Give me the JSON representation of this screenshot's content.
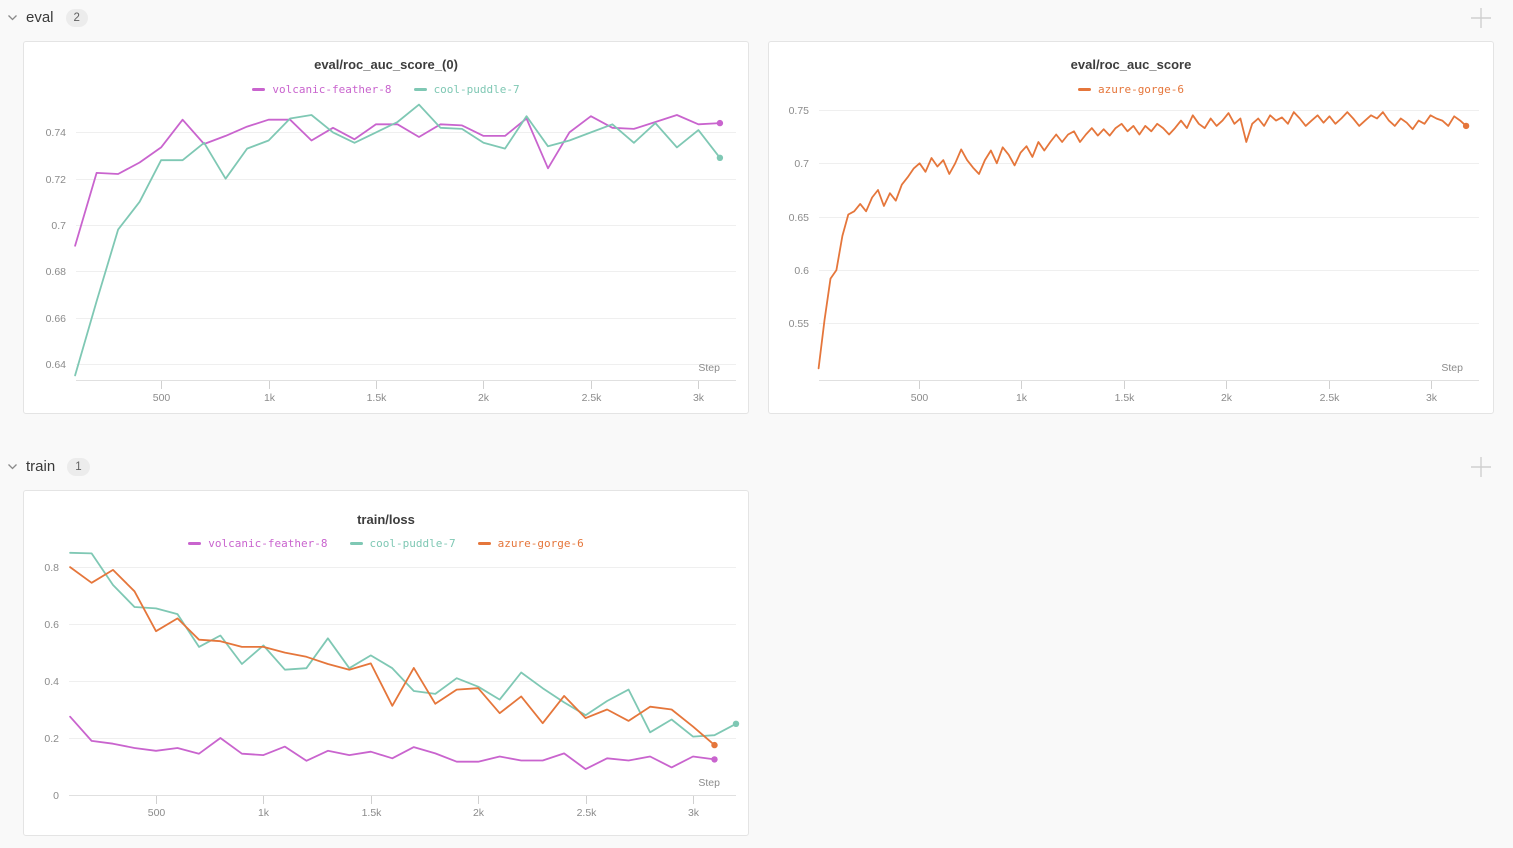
{
  "page": {
    "background": "#f9f9f9"
  },
  "sections": [
    {
      "id": "eval",
      "title": "eval",
      "panel_count": "2",
      "collapse_icon": "chevron-down-icon",
      "add_icon": "plus-icon"
    },
    {
      "id": "train",
      "title": "train",
      "panel_count": "1",
      "collapse_icon": "chevron-down-icon",
      "add_icon": "plus-icon"
    }
  ],
  "colors": {
    "volcanic-feather-8": "#C964CE",
    "cool-puddle-7": "#7FC8B4",
    "azure-gorge-6": "#E5763B",
    "gridline": "#efefef",
    "axis_line": "#e0e0e0",
    "tick_mark": "#d0d0d0",
    "tick_label": "#8b8b8b"
  },
  "chart_data": [
    {
      "type": "line",
      "section": "eval",
      "title": "eval/roc_auc_score_(0)",
      "xlabel": "Step",
      "grid": "horizontal-only",
      "legend_position": "top-center",
      "xlim": [
        104,
        3175
      ],
      "ylim": [
        0.633,
        0.7527
      ],
      "x_ticks": [
        {
          "v": 500,
          "label": "500"
        },
        {
          "v": 1000,
          "label": "1k"
        },
        {
          "v": 1500,
          "label": "1.5k"
        },
        {
          "v": 2000,
          "label": "2k"
        },
        {
          "v": 2500,
          "label": "2.5k"
        },
        {
          "v": 3000,
          "label": "3k"
        }
      ],
      "y_ticks": [
        {
          "v": 0.64,
          "label": "0.64"
        },
        {
          "v": 0.66,
          "label": "0.66"
        },
        {
          "v": 0.68,
          "label": "0.68"
        },
        {
          "v": 0.7,
          "label": "0.7"
        },
        {
          "v": 0.72,
          "label": "0.72"
        },
        {
          "v": 0.74,
          "label": "0.74"
        }
      ],
      "series": [
        {
          "name": "volcanic-feather-8",
          "color": "#C964CE",
          "end_dot": true,
          "x": [
            100,
            200,
            300,
            400,
            500,
            600,
            700,
            800,
            900,
            1000,
            1100,
            1200,
            1300,
            1400,
            1500,
            1600,
            1700,
            1800,
            1900,
            2000,
            2100,
            2200,
            2300,
            2400,
            2500,
            2600,
            2700,
            2800,
            2900,
            3000,
            3100
          ],
          "values": [
            0.691,
            0.7225,
            0.722,
            0.727,
            0.7335,
            0.7455,
            0.735,
            0.7385,
            0.7425,
            0.7455,
            0.7455,
            0.7365,
            0.742,
            0.737,
            0.7435,
            0.7435,
            0.738,
            0.7435,
            0.743,
            0.7385,
            0.7385,
            0.746,
            0.7245,
            0.74,
            0.747,
            0.742,
            0.7415,
            0.7445,
            0.7475,
            0.7435,
            0.744
          ]
        },
        {
          "name": "cool-puddle-7",
          "color": "#7FC8B4",
          "end_dot": true,
          "x": [
            100,
            200,
            300,
            400,
            500,
            600,
            700,
            800,
            900,
            1000,
            1100,
            1200,
            1300,
            1400,
            1500,
            1600,
            1700,
            1800,
            1900,
            2000,
            2100,
            2200,
            2300,
            2400,
            2500,
            2600,
            2700,
            2800,
            2900,
            3000,
            3100
          ],
          "values": [
            0.635,
            0.667,
            0.698,
            0.71,
            0.728,
            0.728,
            0.7355,
            0.72,
            0.733,
            0.7365,
            0.746,
            0.7475,
            0.74,
            0.7355,
            0.74,
            0.7445,
            0.752,
            0.742,
            0.7415,
            0.7355,
            0.733,
            0.747,
            0.734,
            0.7365,
            0.74,
            0.7435,
            0.7355,
            0.744,
            0.7335,
            0.741,
            0.729
          ]
        }
      ]
    },
    {
      "type": "line",
      "section": "eval",
      "title": "eval/roc_auc_score",
      "xlabel": "Step",
      "grid": "horizontal-only",
      "legend_position": "top-center",
      "xlim": [
        12,
        3234
      ],
      "ylim": [
        0.497,
        0.7565
      ],
      "x_ticks": [
        {
          "v": 500,
          "label": "500"
        },
        {
          "v": 1000,
          "label": "1k"
        },
        {
          "v": 1500,
          "label": "1.5k"
        },
        {
          "v": 2000,
          "label": "2k"
        },
        {
          "v": 2500,
          "label": "2.5k"
        },
        {
          "v": 3000,
          "label": "3k"
        }
      ],
      "y_ticks": [
        {
          "v": 0.55,
          "label": "0.55"
        },
        {
          "v": 0.6,
          "label": "0.6"
        },
        {
          "v": 0.65,
          "label": "0.65"
        },
        {
          "v": 0.7,
          "label": "0.7"
        },
        {
          "v": 0.75,
          "label": "0.75"
        }
      ],
      "series": [
        {
          "name": "azure-gorge-6",
          "color": "#E5763B",
          "end_dot": true,
          "x": [
            10,
            39,
            68,
            97,
            126,
            155,
            184,
            213,
            242,
            271,
            300,
            329,
            358,
            387,
            416,
            445,
            474,
            503,
            532,
            561,
            590,
            619,
            648,
            677,
            706,
            735,
            764,
            793,
            822,
            851,
            880,
            909,
            938,
            967,
            996,
            1025,
            1054,
            1083,
            1112,
            1141,
            1170,
            1199,
            1228,
            1257,
            1286,
            1315,
            1344,
            1373,
            1402,
            1431,
            1460,
            1489,
            1518,
            1547,
            1576,
            1605,
            1634,
            1663,
            1692,
            1721,
            1750,
            1779,
            1808,
            1837,
            1866,
            1895,
            1924,
            1953,
            1982,
            2011,
            2040,
            2069,
            2098,
            2127,
            2156,
            2185,
            2214,
            2243,
            2272,
            2301,
            2330,
            2359,
            2388,
            2417,
            2446,
            2475,
            2504,
            2533,
            2562,
            2591,
            2620,
            2649,
            2678,
            2707,
            2736,
            2765,
            2794,
            2823,
            2852,
            2881,
            2910,
            2939,
            2968,
            2997,
            3026,
            3055,
            3084,
            3113,
            3142,
            3171
          ],
          "values": [
            0.508,
            0.553,
            0.592,
            0.6,
            0.632,
            0.652,
            0.655,
            0.662,
            0.655,
            0.668,
            0.675,
            0.66,
            0.672,
            0.665,
            0.68,
            0.687,
            0.695,
            0.7,
            0.692,
            0.705,
            0.697,
            0.703,
            0.69,
            0.7,
            0.713,
            0.703,
            0.696,
            0.69,
            0.703,
            0.712,
            0.7,
            0.715,
            0.708,
            0.698,
            0.71,
            0.716,
            0.706,
            0.72,
            0.712,
            0.72,
            0.727,
            0.72,
            0.727,
            0.73,
            0.72,
            0.727,
            0.733,
            0.726,
            0.732,
            0.726,
            0.733,
            0.737,
            0.73,
            0.735,
            0.727,
            0.735,
            0.73,
            0.737,
            0.733,
            0.727,
            0.733,
            0.74,
            0.733,
            0.745,
            0.737,
            0.733,
            0.742,
            0.735,
            0.74,
            0.747,
            0.737,
            0.742,
            0.72,
            0.737,
            0.742,
            0.735,
            0.745,
            0.74,
            0.743,
            0.737,
            0.748,
            0.742,
            0.735,
            0.74,
            0.745,
            0.738,
            0.744,
            0.737,
            0.742,
            0.748,
            0.742,
            0.735,
            0.74,
            0.745,
            0.742,
            0.748,
            0.74,
            0.735,
            0.742,
            0.738,
            0.732,
            0.74,
            0.737,
            0.745,
            0.742,
            0.74,
            0.735,
            0.744,
            0.74,
            0.735
          ]
        }
      ]
    },
    {
      "type": "line",
      "section": "train",
      "title": "train/loss",
      "xlabel": "Step",
      "grid": "horizontal-only",
      "legend_position": "top-center",
      "xlim": [
        95,
        3200
      ],
      "ylim": [
        0,
        0.86
      ],
      "x_ticks": [
        {
          "v": 500,
          "label": "500"
        },
        {
          "v": 1000,
          "label": "1k"
        },
        {
          "v": 1500,
          "label": "1.5k"
        },
        {
          "v": 2000,
          "label": "2k"
        },
        {
          "v": 2500,
          "label": "2.5k"
        },
        {
          "v": 3000,
          "label": "3k"
        }
      ],
      "y_ticks": [
        {
          "v": 0,
          "label": "0"
        },
        {
          "v": 0.2,
          "label": "0.2"
        },
        {
          "v": 0.4,
          "label": "0.4"
        },
        {
          "v": 0.6,
          "label": "0.6"
        },
        {
          "v": 0.8,
          "label": "0.8"
        }
      ],
      "series": [
        {
          "name": "volcanic-feather-8",
          "color": "#C964CE",
          "end_dot": true,
          "x": [
            100,
            200,
            300,
            400,
            500,
            600,
            700,
            800,
            900,
            1000,
            1100,
            1200,
            1300,
            1400,
            1500,
            1600,
            1700,
            1800,
            1900,
            2000,
            2100,
            2200,
            2300,
            2400,
            2500,
            2600,
            2700,
            2800,
            2900,
            3000,
            3100
          ],
          "values": [
            0.275,
            0.19,
            0.18,
            0.165,
            0.155,
            0.165,
            0.145,
            0.2,
            0.145,
            0.14,
            0.17,
            0.12,
            0.155,
            0.14,
            0.152,
            0.129,
            0.168,
            0.146,
            0.117,
            0.117,
            0.135,
            0.121,
            0.121,
            0.146,
            0.091,
            0.129,
            0.121,
            0.135,
            0.097,
            0.135,
            0.125
          ]
        },
        {
          "name": "cool-puddle-7",
          "color": "#7FC8B4",
          "end_dot": true,
          "x": [
            100,
            200,
            300,
            400,
            500,
            600,
            700,
            800,
            900,
            1000,
            1100,
            1200,
            1300,
            1400,
            1500,
            1600,
            1700,
            1800,
            1900,
            2000,
            2100,
            2200,
            2300,
            2400,
            2500,
            2600,
            2700,
            2800,
            2900,
            3000,
            3100,
            3200
          ],
          "values": [
            0.85,
            0.848,
            0.737,
            0.66,
            0.655,
            0.635,
            0.52,
            0.56,
            0.46,
            0.525,
            0.44,
            0.445,
            0.55,
            0.445,
            0.49,
            0.445,
            0.365,
            0.355,
            0.41,
            0.38,
            0.335,
            0.43,
            0.375,
            0.325,
            0.28,
            0.33,
            0.37,
            0.22,
            0.265,
            0.205,
            0.21,
            0.25
          ]
        },
        {
          "name": "azure-gorge-6",
          "color": "#E5763B",
          "end_dot": true,
          "x": [
            100,
            200,
            300,
            400,
            500,
            600,
            700,
            800,
            900,
            1000,
            1100,
            1200,
            1300,
            1400,
            1500,
            1600,
            1700,
            1800,
            1900,
            2000,
            2100,
            2200,
            2300,
            2400,
            2500,
            2600,
            2700,
            2800,
            2900,
            3000,
            3100
          ],
          "values": [
            0.8,
            0.745,
            0.79,
            0.715,
            0.575,
            0.62,
            0.545,
            0.54,
            0.52,
            0.52,
            0.5,
            0.485,
            0.46,
            0.44,
            0.462,
            0.313,
            0.446,
            0.32,
            0.37,
            0.375,
            0.287,
            0.346,
            0.252,
            0.348,
            0.27,
            0.3,
            0.26,
            0.31,
            0.3,
            0.24,
            0.175
          ]
        }
      ]
    }
  ]
}
